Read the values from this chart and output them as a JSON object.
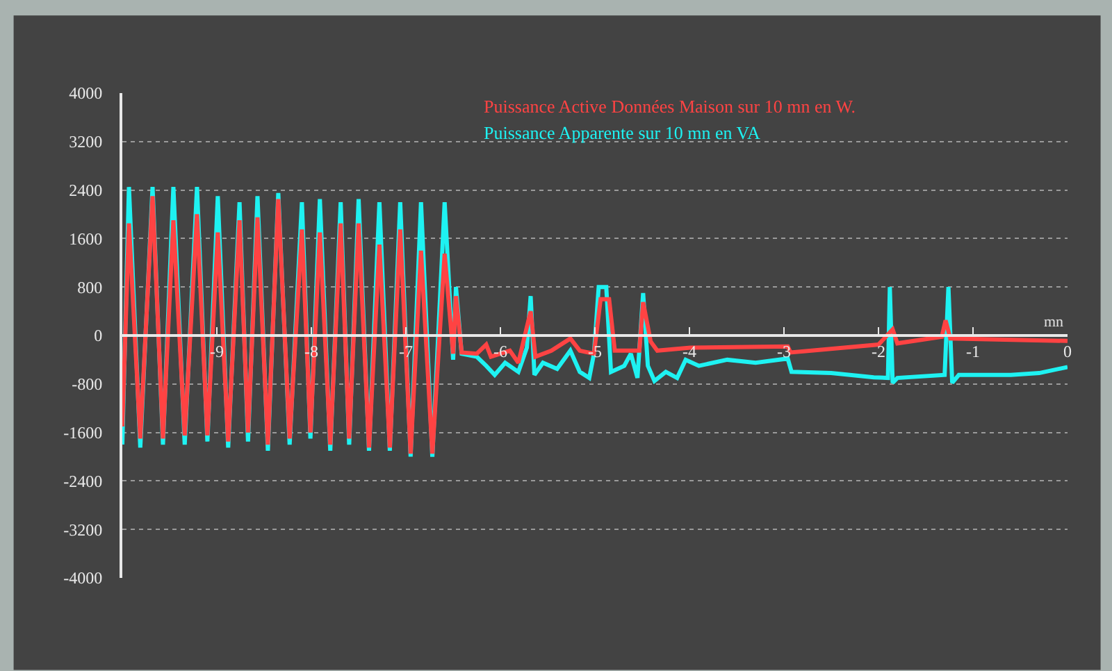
{
  "chart_data": {
    "type": "line",
    "xlabel": "mn",
    "xlim": [
      -10,
      0
    ],
    "xticks": [
      -9,
      -8,
      -7,
      -6,
      -5,
      -4,
      -3,
      -2,
      -1,
      0
    ],
    "ylim": [
      -4000,
      4000
    ],
    "yticks": [
      -4000,
      -3200,
      -2400,
      -1600,
      -800,
      0,
      800,
      1600,
      2400,
      3200,
      4000
    ],
    "grid": "y",
    "legend": false,
    "marker": "none",
    "line_style": "solid",
    "series": [
      {
        "name": "Puissance Apparente sur 10 mn en VA",
        "color": "#1ef2f2",
        "x": [
          -10,
          -9.93,
          -9.81,
          -9.68,
          -9.57,
          -9.46,
          -9.34,
          -9.21,
          -9.1,
          -8.99,
          -8.88,
          -8.76,
          -8.67,
          -8.57,
          -8.46,
          -8.35,
          -8.23,
          -8.1,
          -8.01,
          -7.91,
          -7.8,
          -7.69,
          -7.6,
          -7.5,
          -7.39,
          -7.28,
          -7.17,
          -7.06,
          -6.95,
          -6.84,
          -6.72,
          -6.59,
          -6.5,
          -6.47,
          -6.41,
          -6.25,
          -6.15,
          -6.06,
          -5.95,
          -5.81,
          -5.72,
          -5.68,
          -5.64,
          -5.55,
          -5.4,
          -5.26,
          -5.16,
          -5.06,
          -5.01,
          -4.96,
          -4.88,
          -4.83,
          -4.69,
          -4.62,
          -4.55,
          -4.49,
          -4.44,
          -4.37,
          -4.25,
          -4.13,
          -4.04,
          -3.9,
          -3.6,
          -3.3,
          -2.96,
          -2.92,
          -2.5,
          -2.05,
          -1.9,
          -1.88,
          -1.85,
          -1.8,
          -1.3,
          -1.26,
          -1.22,
          -1.15,
          -0.6,
          -0.3,
          0
        ],
        "values": [
          -1800,
          2450,
          -1850,
          2450,
          -1800,
          2450,
          -1800,
          2450,
          -1750,
          2300,
          -1850,
          2200,
          -1750,
          2300,
          -1900,
          2350,
          -1800,
          2200,
          -1700,
          2250,
          -1900,
          2200,
          -1800,
          2250,
          -1900,
          2200,
          -1900,
          2200,
          -2000,
          2200,
          -2000,
          2200,
          -400,
          800,
          -300,
          -350,
          -500,
          -650,
          -450,
          -600,
          -200,
          650,
          -650,
          -450,
          -550,
          -250,
          -600,
          -700,
          -300,
          800,
          800,
          -600,
          -500,
          -300,
          -700,
          700,
          -500,
          -750,
          -600,
          -700,
          -400,
          -500,
          -400,
          -450,
          -380,
          -600,
          -620,
          -690,
          -700,
          800,
          -780,
          -700,
          -650,
          800,
          -780,
          -650,
          -650,
          -620,
          -520
        ]
      },
      {
        "name": "Puissance Active Données Maison sur 10 mn en W.",
        "color": "#ff4343",
        "x": [
          -10,
          -9.93,
          -9.81,
          -9.68,
          -9.57,
          -9.46,
          -9.34,
          -9.21,
          -9.1,
          -8.99,
          -8.88,
          -8.76,
          -8.67,
          -8.57,
          -8.46,
          -8.35,
          -8.23,
          -8.1,
          -8.01,
          -7.91,
          -7.8,
          -7.69,
          -7.6,
          -7.5,
          -7.39,
          -7.28,
          -7.17,
          -7.06,
          -6.95,
          -6.84,
          -6.72,
          -6.59,
          -6.5,
          -6.47,
          -6.41,
          -6.25,
          -6.15,
          -6.1,
          -5.9,
          -5.81,
          -5.68,
          -5.63,
          -5.46,
          -5.26,
          -5.16,
          -5.01,
          -4.94,
          -4.85,
          -4.79,
          -4.53,
          -4.49,
          -4.41,
          -4.34,
          -3.99,
          -2.96,
          -2.93,
          -2.0,
          -1.85,
          -1.8,
          -1.33,
          -1.29,
          -1.24,
          0
        ],
        "values": [
          -1500,
          1850,
          -1700,
          2300,
          -1700,
          1900,
          -1650,
          2000,
          -1650,
          1700,
          -1750,
          1900,
          -1600,
          1950,
          -1800,
          2250,
          -1700,
          1750,
          -1600,
          1700,
          -1800,
          1850,
          -1700,
          1850,
          -1850,
          1500,
          -1850,
          1750,
          -1950,
          1400,
          -1950,
          1350,
          -300,
          650,
          -280,
          -300,
          -150,
          -350,
          -250,
          -450,
          400,
          -350,
          -250,
          -50,
          -250,
          -300,
          600,
          600,
          -250,
          -250,
          550,
          -100,
          -250,
          -200,
          -180,
          -280,
          -150,
          100,
          -130,
          -20,
          250,
          -50,
          -90
        ]
      }
    ]
  }
}
